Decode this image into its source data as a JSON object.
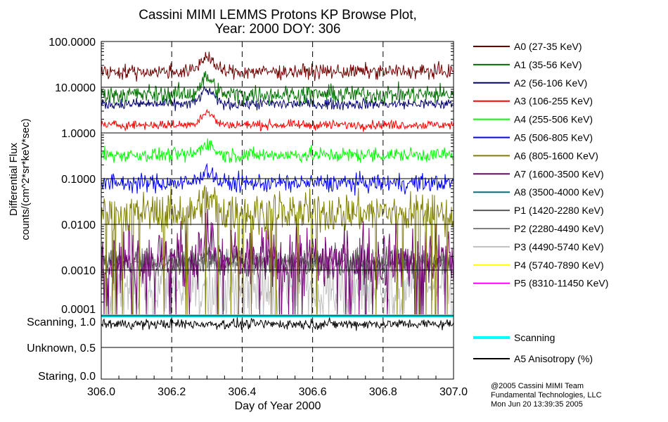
{
  "chart_data": {
    "type": "line",
    "title": [
      "Cassini MIMI LEMMS Protons KP Browse Plot,",
      "Year: 2000 DOY: 306"
    ],
    "xlabel": "Day of Year 2000",
    "ylabel": [
      "Differential Flux",
      "counts/(cm^2*sr*keV*sec)"
    ],
    "xlim": [
      306.0,
      307.0
    ],
    "xticks": [
      "306.0",
      "306.2",
      "306.4",
      "306.6",
      "306.8",
      "307.0"
    ],
    "ylim_log": [
      0.0001,
      100
    ],
    "yticks": [
      "100.0000",
      "10.0000",
      "1.0000",
      "0.1000",
      "0.0100",
      "0.0010",
      "0.0001"
    ],
    "lower_panel_ticks": [
      "Scanning, 1.0",
      "Unknown, 0.5",
      "Staring, 0.0"
    ],
    "grid": true,
    "legend_position": "right",
    "event_peak_doy": 306.3,
    "series": [
      {
        "name": "A0 (27-35 KeV)",
        "color": "#700000",
        "median": 22,
        "noise_dex": 0.08,
        "peak_factor": 2.2
      },
      {
        "name": "A1 (35-56 KeV)",
        "color": "#007000",
        "median": 7,
        "noise_dex": 0.1,
        "peak_factor": 2.3
      },
      {
        "name": "A2 (56-106 KeV)",
        "color": "#000070",
        "median": 4.3,
        "noise_dex": 0.06,
        "peak_factor": 2.0
      },
      {
        "name": "A3 (106-255 KeV)",
        "color": "#ff0000",
        "median": 1.5,
        "noise_dex": 0.05,
        "peak_factor": 1.9
      },
      {
        "name": "A4 (255-506 KeV)",
        "color": "#00ff00",
        "median": 0.33,
        "noise_dex": 0.08,
        "peak_factor": 1.8
      },
      {
        "name": "A5 (506-805 KeV)",
        "color": "#0000ff",
        "median": 0.08,
        "noise_dex": 0.1,
        "peak_factor": 1.9
      },
      {
        "name": "A6 (805-1600 KeV)",
        "color": "#808000",
        "median": 0.018,
        "noise_dex": 0.22,
        "peak_factor": 2.2
      },
      {
        "name": "A7 (1600-3500 KeV)",
        "color": "#700070",
        "median": 0.0018,
        "noise_dex": 0.35,
        "peak_factor": 2.5
      },
      {
        "name": "A8 (3500-4000 KeV)",
        "color": "#007070",
        "median": null,
        "noise_dex": 0,
        "peak_factor": 1
      },
      {
        "name": "P1 (1420-2280 KeV)",
        "color": "#585858",
        "median": 0.0015,
        "noise_dex": 0.15,
        "peak_factor": 1.3
      },
      {
        "name": "P2 (2280-4490 KeV)",
        "color": "#808080",
        "median": 0.0014,
        "noise_dex": 0.15,
        "peak_factor": 1.3
      },
      {
        "name": "P3 (4490-5740 KeV)",
        "color": "#c0c0c0",
        "median": 0.0004,
        "noise_dex": 0.35,
        "peak_factor": 1.3
      },
      {
        "name": "P4 (5740-7890 KeV)",
        "color": "#ffff00",
        "median": null,
        "noise_dex": 0,
        "peak_factor": 1
      },
      {
        "name": "P5 (8310-11450 KeV)",
        "color": "#ff00ff",
        "median": null,
        "noise_dex": 0,
        "peak_factor": 1
      }
    ],
    "lower_series": [
      {
        "name": "Scanning",
        "color": "#00ffff",
        "value": 1.0
      },
      {
        "name": "A5 Anisotropy (%)",
        "color": "#000000",
        "median": 0.87,
        "noise": 0.04
      }
    ]
  },
  "credit": [
    "@2005 Cassini MIMI Team",
    "Fundamental Technologies, LLC",
    "Mon Jun 20 13:39:35 2005"
  ]
}
